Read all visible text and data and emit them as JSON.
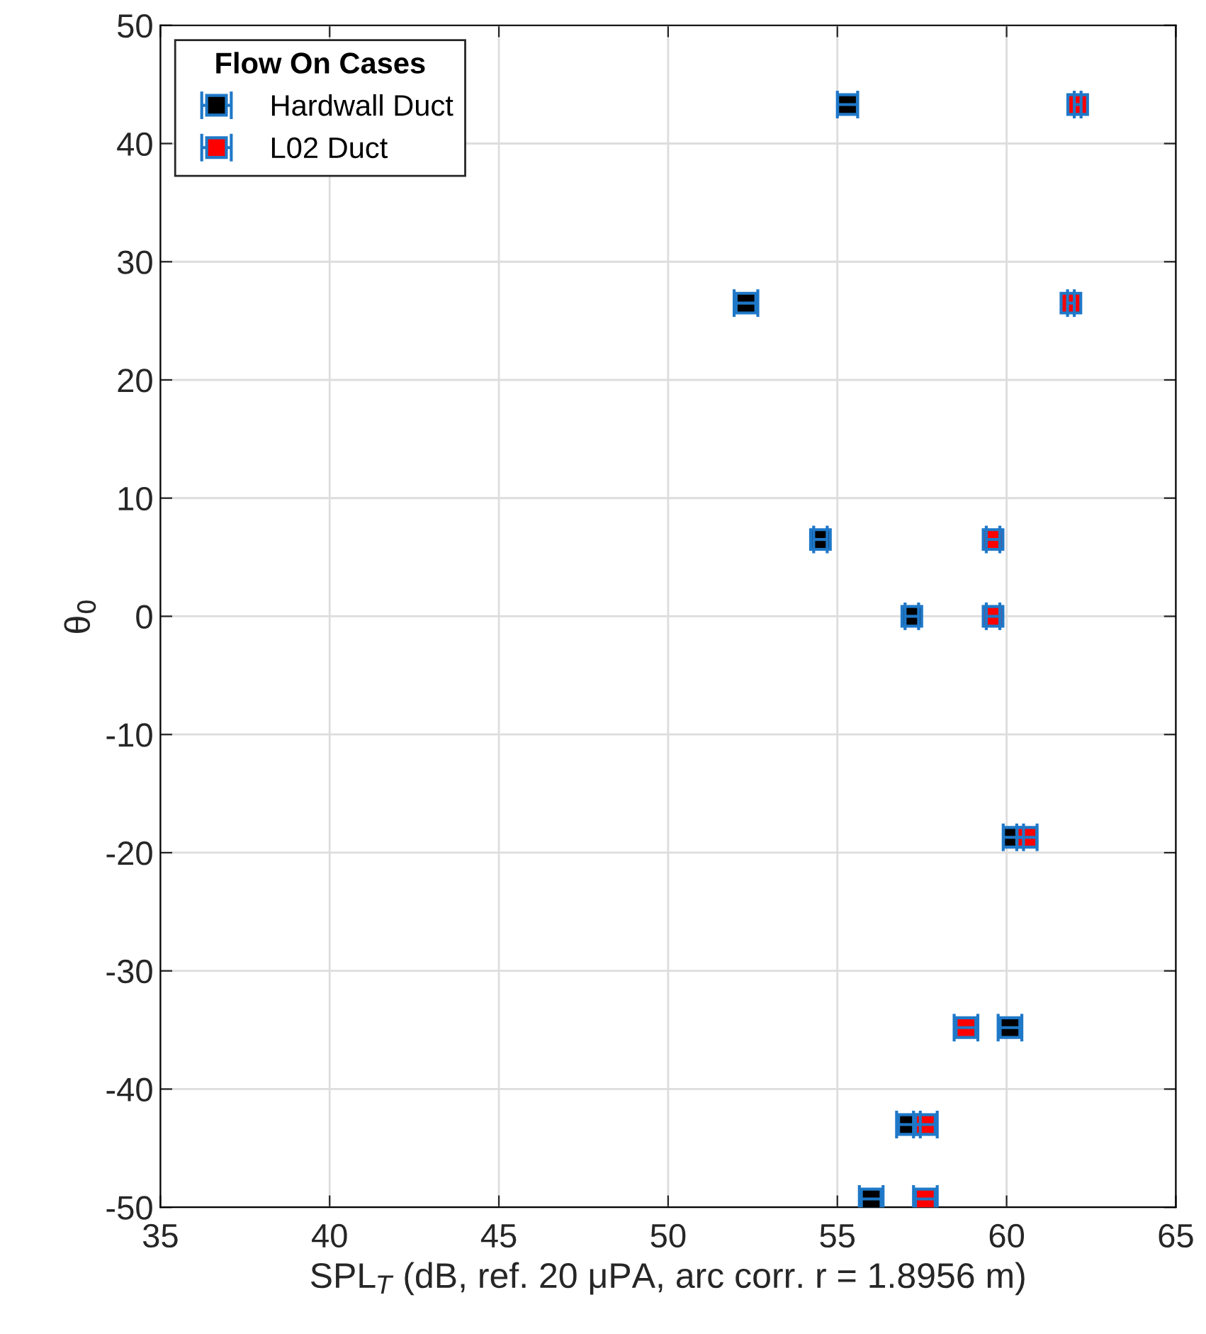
{
  "chart_data": {
    "type": "scatter",
    "xlabel": "SPL$_{T}$ (dB, ref. 20 μPA, arc corr. r = 1.8956 m)",
    "ylabel": "θ$_{0}$",
    "legend_title": "Flow On Cases",
    "xlim": [
      35,
      65
    ],
    "xticks": [
      35,
      40,
      45,
      50,
      55,
      60,
      65
    ],
    "ylim": [
      -50,
      50
    ],
    "yticks": [
      -50,
      -40,
      -30,
      -20,
      -10,
      0,
      10,
      20,
      30,
      40,
      50
    ],
    "grid": true,
    "legend": "top left",
    "marker": "square",
    "series": [
      {
        "name": "Hardwall Duct",
        "color": "#000000",
        "x": [
          55.3,
          52.3,
          54.5,
          57.2,
          60.2,
          60.1,
          57.1,
          56.0
        ],
        "values": [
          43.3,
          26.5,
          6.5,
          0,
          -18.7,
          -34.8,
          -43.0,
          -49.3
        ],
        "xerrors": [
          0.3,
          0.35,
          0.2,
          0.2,
          0.3,
          0.35,
          0.35,
          0.35
        ]
      },
      {
        "name": "L02 Duct",
        "color": "#ff0000",
        "x": [
          62.1,
          61.9,
          59.6,
          59.6,
          60.6,
          58.8,
          57.6,
          57.6
        ],
        "values": [
          43.3,
          26.5,
          6.5,
          0,
          -18.7,
          -34.8,
          -43.0,
          -49.3
        ],
        "xerrors": [
          0.1,
          0.1,
          0.2,
          0.2,
          0.3,
          0.35,
          0.35,
          0.35
        ]
      }
    ]
  }
}
